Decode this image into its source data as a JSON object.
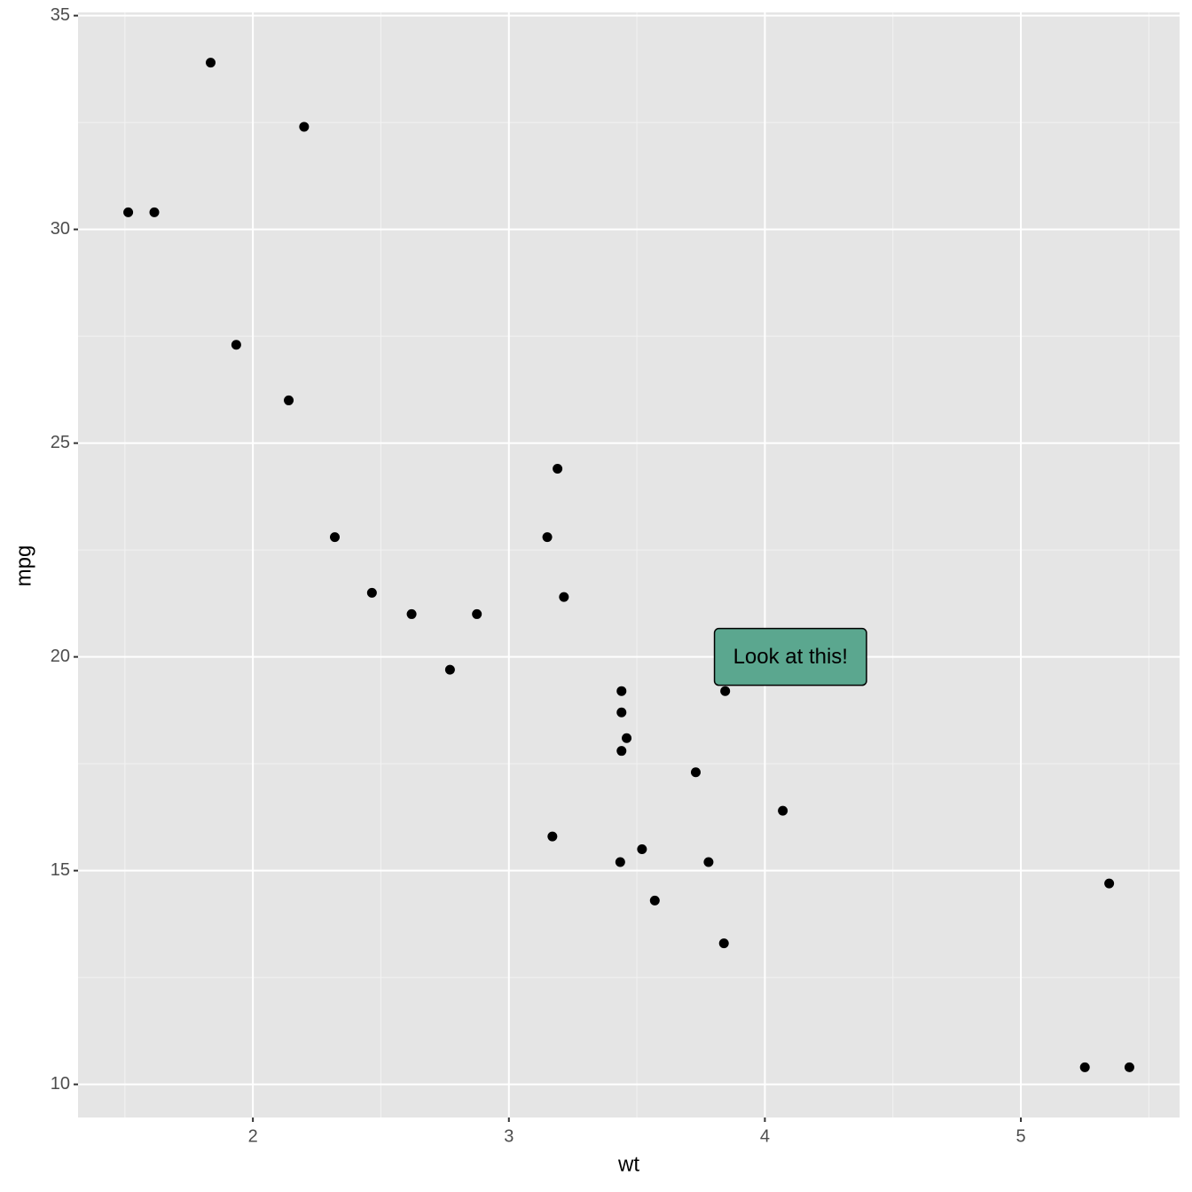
{
  "chart_data": {
    "type": "scatter",
    "x_label": "wt",
    "y_label": "mpg",
    "x": [
      2.62,
      2.875,
      2.32,
      3.215,
      3.44,
      3.46,
      3.57,
      3.19,
      3.15,
      3.44,
      3.44,
      4.07,
      3.73,
      3.78,
      5.25,
      5.424,
      5.345,
      2.2,
      1.615,
      1.835,
      2.465,
      3.52,
      3.435,
      3.84,
      3.845,
      1.935,
      2.14,
      1.513,
      3.17,
      2.77
    ],
    "values": [
      21.0,
      21.0,
      22.8,
      21.4,
      18.7,
      18.1,
      14.3,
      24.4,
      22.8,
      19.2,
      17.8,
      16.4,
      17.3,
      15.2,
      10.4,
      10.4,
      14.7,
      32.4,
      30.4,
      33.9,
      21.5,
      15.5,
      15.2,
      13.3,
      19.2,
      27.3,
      26.0,
      30.4,
      15.8,
      19.7
    ],
    "color": "#000000",
    "xlim": [
      1.317,
      5.62
    ],
    "ylim": [
      9.225,
      35.075
    ],
    "xticks": [
      2,
      3,
      4,
      5
    ],
    "yticks": [
      10,
      15,
      20,
      25,
      30,
      35
    ],
    "x_minor_ticks": [
      1.5,
      2.5,
      3.5,
      4.5,
      5.5
    ],
    "y_minor_ticks": [
      12.5,
      17.5,
      22.5,
      27.5,
      32.5
    ],
    "grid": true,
    "annotation": {
      "text": "Look at this!",
      "x": 4.1,
      "y": 20,
      "fill": "#5ba78f"
    }
  }
}
